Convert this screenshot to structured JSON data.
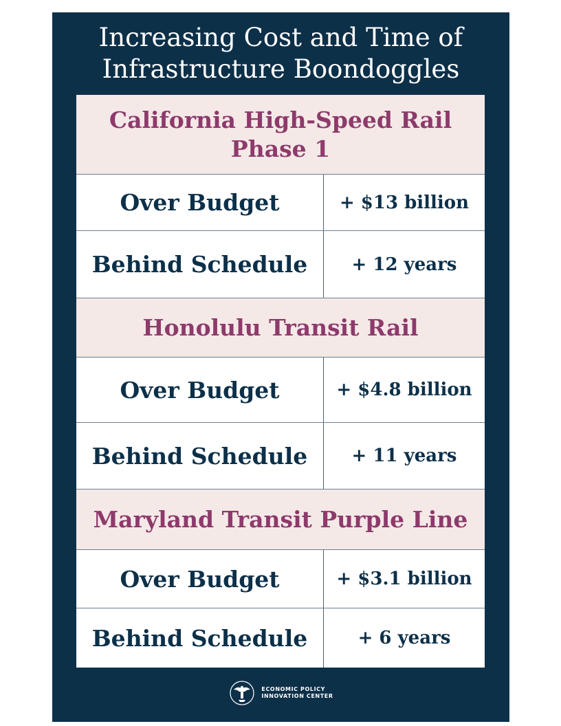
{
  "title": {
    "line1": "Increasing Cost and Time of",
    "line2": "Infrastructure Boondoggles"
  },
  "projects": [
    {
      "name_lines": [
        "California High-Speed Rail",
        "Phase 1"
      ],
      "over_budget_label": "Over Budget",
      "over_budget_value": "+ $13 billion",
      "behind_schedule_label": "Behind Schedule",
      "behind_schedule_value": "+ 12 years"
    },
    {
      "name_lines": [
        "Honolulu Transit Rail"
      ],
      "over_budget_label": "Over Budget",
      "over_budget_value": "+ $4.8 billion",
      "behind_schedule_label": "Behind Schedule",
      "behind_schedule_value": "+ 11 years"
    },
    {
      "name_lines": [
        "Maryland Transit Purple Line"
      ],
      "over_budget_label": "Over Budget",
      "over_budget_value": "+ $3.1 billion",
      "behind_schedule_label": "Behind Schedule",
      "behind_schedule_value": "+ 6 years"
    }
  ],
  "footer": {
    "logo_icon": "eagle-seal-icon",
    "org_line1": "ECONOMIC POLICY",
    "org_line2": "INNOVATION CENTER"
  },
  "colors": {
    "background": "#0d3049",
    "header_fill": "#f4e9e7",
    "project_name": "#8e3a6b",
    "body_text": "#0d3049"
  }
}
